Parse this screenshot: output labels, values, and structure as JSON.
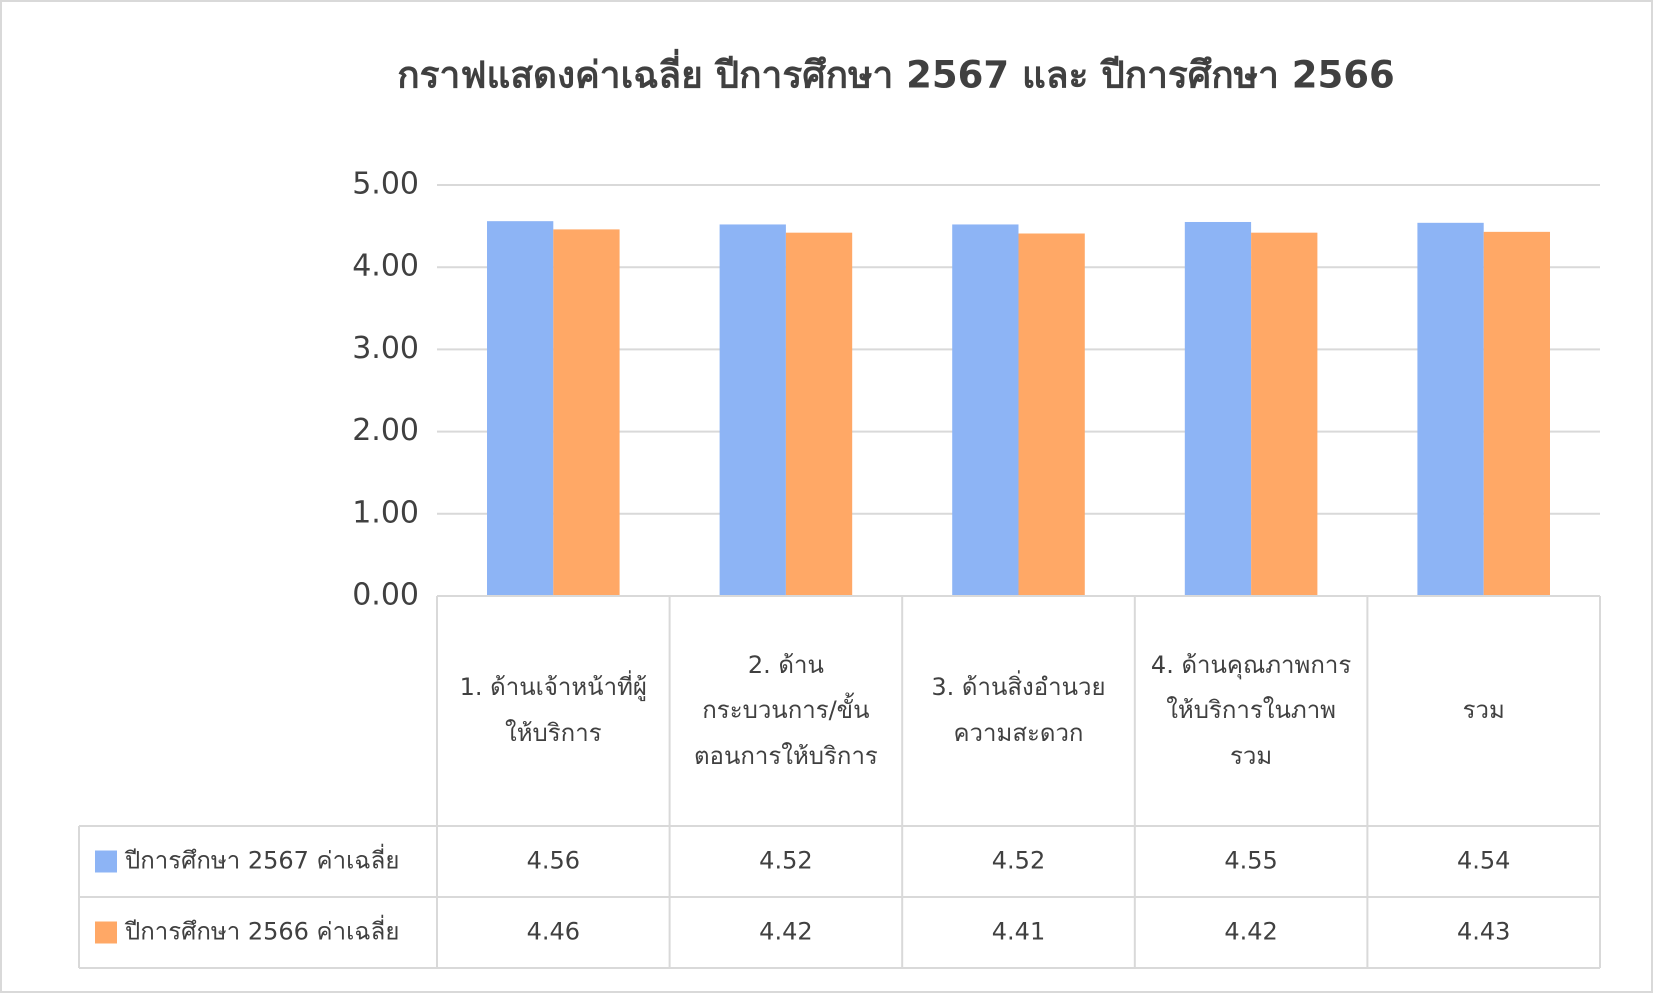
{
  "chart_data": {
    "type": "bar",
    "title": "กราฟแสดงค่าเฉลี่ย ปีการศึกษา 2567 และ ปีการศึกษา 2566",
    "categories": [
      "1. ด้านเจ้าหน้าที่ผู้ให้บริการ",
      "2. ด้านกระบวนการ/ขั้นตอนการให้บริการ",
      "3. ด้านสิ่งอำนวยความสะดวก",
      "4. ด้านคุณภาพการให้บริการในภาพรวม",
      "รวม"
    ],
    "series": [
      {
        "name": "ปีการศึกษา 2567 ค่าเฉลี่ย",
        "color": "#8db4f5",
        "values": [
          4.56,
          4.52,
          4.52,
          4.55,
          4.54
        ]
      },
      {
        "name": "ปีการศึกษา 2566 ค่าเฉลี่ย",
        "color": "#ffa866",
        "values": [
          4.46,
          4.42,
          4.41,
          4.42,
          4.43
        ]
      }
    ],
    "ylim": [
      0,
      5
    ],
    "yticks": [
      {
        "value": 0,
        "label": "0.00"
      },
      {
        "value": 1,
        "label": "1.00"
      },
      {
        "value": 2,
        "label": "2.00"
      },
      {
        "value": 3,
        "label": "3.00"
      },
      {
        "value": 4,
        "label": "4.00"
      },
      {
        "value": 5,
        "label": "5.00"
      }
    ],
    "grid": true,
    "data_table": true
  }
}
